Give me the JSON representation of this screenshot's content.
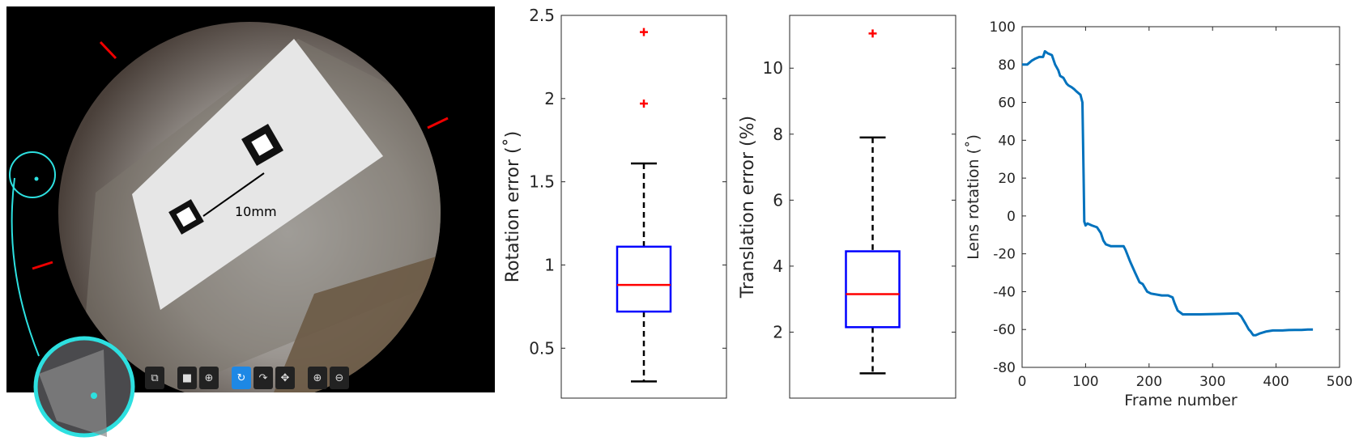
{
  "image_panel": {
    "scale_bar_label": "10mm",
    "toolbar_icons": [
      "restore-windows-icon",
      "camera-icon",
      "crosshair-icon",
      "sync-icon",
      "rotate-icon",
      "move-icon",
      "zoom-in-icon",
      "zoom-out-icon"
    ],
    "toolbar_active": "sync-icon"
  },
  "chart_data": [
    {
      "type": "box",
      "ylabel": "Rotation error (˚)",
      "ylim": [
        0.2,
        2.5
      ],
      "yticks": [
        0.5,
        1,
        1.5,
        2,
        2.5
      ],
      "ytick_labels": [
        "0.5",
        "1",
        "1.5",
        "2",
        "2.5"
      ],
      "whisker_low": 0.3,
      "q1": 0.72,
      "median": 0.88,
      "q3": 1.11,
      "whisker_high": 1.61,
      "outliers": [
        1.97,
        2.4
      ],
      "colors": {
        "box": "#0000ff",
        "median": "#ff0000",
        "whisker": "#000000",
        "outlier": "#ff0000"
      }
    },
    {
      "type": "box",
      "ylabel": "Translation error (%)",
      "ylim": [
        0.0,
        11.6
      ],
      "yticks": [
        2,
        4,
        6,
        8,
        10
      ],
      "ytick_labels": [
        "2",
        "4",
        "6",
        "8",
        "10"
      ],
      "whisker_low": 0.75,
      "q1": 2.15,
      "median": 3.15,
      "q3": 4.45,
      "whisker_high": 7.9,
      "outliers": [
        11.05
      ],
      "colors": {
        "box": "#0000ff",
        "median": "#ff0000",
        "whisker": "#000000",
        "outlier": "#ff0000"
      }
    },
    {
      "type": "line",
      "xlabel": "Frame number",
      "ylabel": "Lens rotation (˚)",
      "xlim": [
        0,
        500
      ],
      "ylim": [
        -80,
        100
      ],
      "xticks": [
        0,
        100,
        200,
        300,
        400,
        500
      ],
      "xtick_labels": [
        "0",
        "100",
        "200",
        "300",
        "400",
        "500"
      ],
      "yticks": [
        -80,
        -60,
        -40,
        -20,
        0,
        20,
        40,
        60,
        80,
        100
      ],
      "ytick_labels": [
        "-80",
        "-60",
        "-40",
        "-20",
        "0",
        "20",
        "40",
        "60",
        "80",
        "100"
      ],
      "color": "#0072bd",
      "x": [
        0,
        8,
        15,
        20,
        27,
        33,
        36,
        40,
        47,
        52,
        57,
        60,
        65,
        70,
        73,
        78,
        82,
        85,
        92,
        95,
        97,
        98,
        100,
        103,
        110,
        118,
        124,
        128,
        132,
        140,
        152,
        160,
        163,
        170,
        178,
        185,
        190,
        197,
        203,
        220,
        230,
        237,
        240,
        245,
        253,
        262,
        280,
        310,
        340,
        345,
        352,
        357,
        360,
        364,
        368,
        375,
        385,
        395,
        410,
        420,
        430,
        440,
        450,
        458
      ],
      "y": [
        80,
        80,
        82,
        83,
        84,
        84,
        87,
        86,
        85,
        80,
        77,
        74,
        73,
        70,
        69,
        68,
        67,
        66,
        64,
        60,
        20,
        -3,
        -5,
        -4,
        -5,
        -6,
        -9,
        -13,
        -15,
        -16,
        -16,
        -16,
        -18,
        -24,
        -30,
        -35,
        -36,
        -40,
        -41,
        -42,
        -42,
        -43,
        -46,
        -50,
        -52,
        -52,
        -52,
        -51.8,
        -51.5,
        -53,
        -57,
        -60,
        -61,
        -63,
        -63,
        -62,
        -61,
        -60.5,
        -60.5,
        -60.3,
        -60.2,
        -60.2,
        -60,
        -60
      ]
    }
  ]
}
